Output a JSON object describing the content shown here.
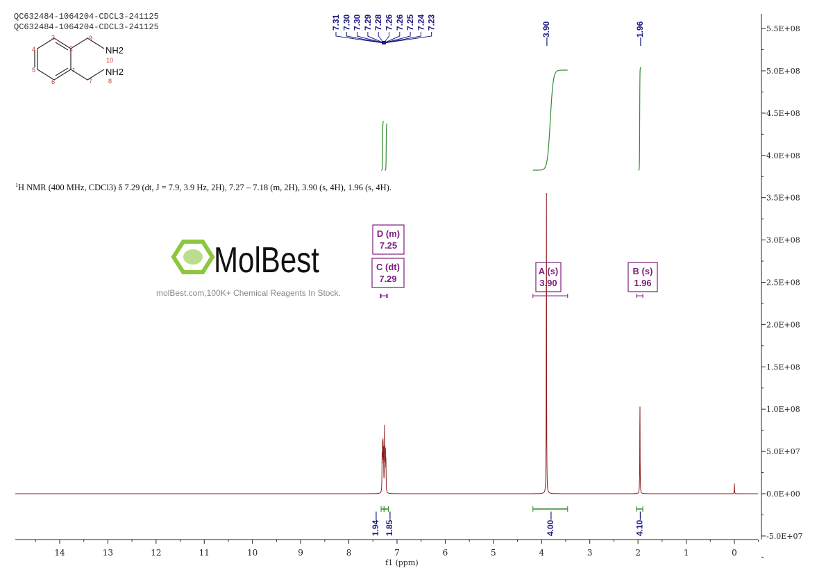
{
  "sample_ids": [
    "QC632484-1064204-CDCL3-241125",
    "QC632484-1064204-CDCL3-241125"
  ],
  "structure": {
    "atom_numbers": [
      "1",
      "2",
      "3",
      "4",
      "5",
      "6",
      "7",
      "8",
      "9",
      "10"
    ],
    "groups": [
      "NH2",
      "NH2"
    ]
  },
  "description": {
    "nucleus_sup": "1",
    "text": "H NMR (400 MHz, CDCl3) δ 7.29 (dt, J = 7.9, 3.9 Hz, 2H), 7.27 – 7.18 (m, 2H), 3.90 (s, 4H), 1.96 (s, 4H)."
  },
  "watermark": {
    "logo": "MolBest",
    "tagline": "molBest.com,100K+ Chemical Reagents In Stock.",
    "color": "#8dc63f"
  },
  "chart_data": {
    "type": "line",
    "xlabel": "f1 (ppm)",
    "ylabel": "",
    "xlim": [
      14.9,
      -0.5
    ],
    "ylim": [
      -50000000,
      560000000
    ],
    "x_ticks": [
      "14",
      "13",
      "12",
      "11",
      "10",
      "9",
      "8",
      "7",
      "6",
      "5",
      "4",
      "3",
      "2",
      "1",
      "0"
    ],
    "y_ticks": [
      "5.5E+08",
      "5.0E+08",
      "4.5E+08",
      "4.0E+08",
      "3.5E+08",
      "3.0E+08",
      "2.5E+08",
      "2.0E+08",
      "1.5E+08",
      "1.0E+08",
      "5.0E+07",
      "0.0E+00",
      "-5.0E+07"
    ],
    "y_tick_values": [
      550000000,
      500000000,
      450000000,
      400000000,
      350000000,
      300000000,
      250000000,
      200000000,
      150000000,
      100000000,
      50000000,
      0,
      -50000000
    ],
    "spectrum_color": "#8b1a1a",
    "integral_color": "#2e8b2e",
    "label_color": "#1a1a80",
    "annotation_color": "#7b1f7b",
    "peaks": [
      {
        "ppm": 7.31,
        "intensity": 40000000
      },
      {
        "ppm": 7.3,
        "intensity": 55000000
      },
      {
        "ppm": 7.29,
        "intensity": 60000000
      },
      {
        "ppm": 7.28,
        "intensity": 45000000
      },
      {
        "ppm": 7.26,
        "intensity": 75000000
      },
      {
        "ppm": 7.25,
        "intensity": 50000000
      },
      {
        "ppm": 7.24,
        "intensity": 45000000
      },
      {
        "ppm": 7.23,
        "intensity": 35000000
      },
      {
        "ppm": 3.9,
        "intensity": 360000000
      },
      {
        "ppm": 1.96,
        "intensity": 115000000
      },
      {
        "ppm": 0.0,
        "intensity": 12000000
      }
    ],
    "peak_labels": {
      "multiplet": [
        "7.31",
        "7.30",
        "7.30",
        "7.29",
        "7.28",
        "7.26",
        "7.26",
        "7.25",
        "7.24",
        "7.23"
      ],
      "singles": [
        {
          "ppm": 3.9,
          "label": "3.90"
        },
        {
          "ppm": 1.96,
          "label": "1.96"
        }
      ]
    },
    "integrals": [
      {
        "from": 7.33,
        "to": 7.27,
        "value": "1.94"
      },
      {
        "from": 7.27,
        "to": 7.18,
        "value": "1.85"
      },
      {
        "from": 4.18,
        "to": 3.46,
        "value": "4.00"
      },
      {
        "from": 2.03,
        "to": 1.9,
        "value": "4.10"
      }
    ],
    "multiplets": [
      {
        "id": "D",
        "type": "m",
        "shift": "7.25"
      },
      {
        "id": "C",
        "type": "dt",
        "shift": "7.29"
      },
      {
        "id": "A",
        "type": "s",
        "shift": "3.90"
      },
      {
        "id": "B",
        "type": "s",
        "shift": "1.96"
      }
    ]
  }
}
